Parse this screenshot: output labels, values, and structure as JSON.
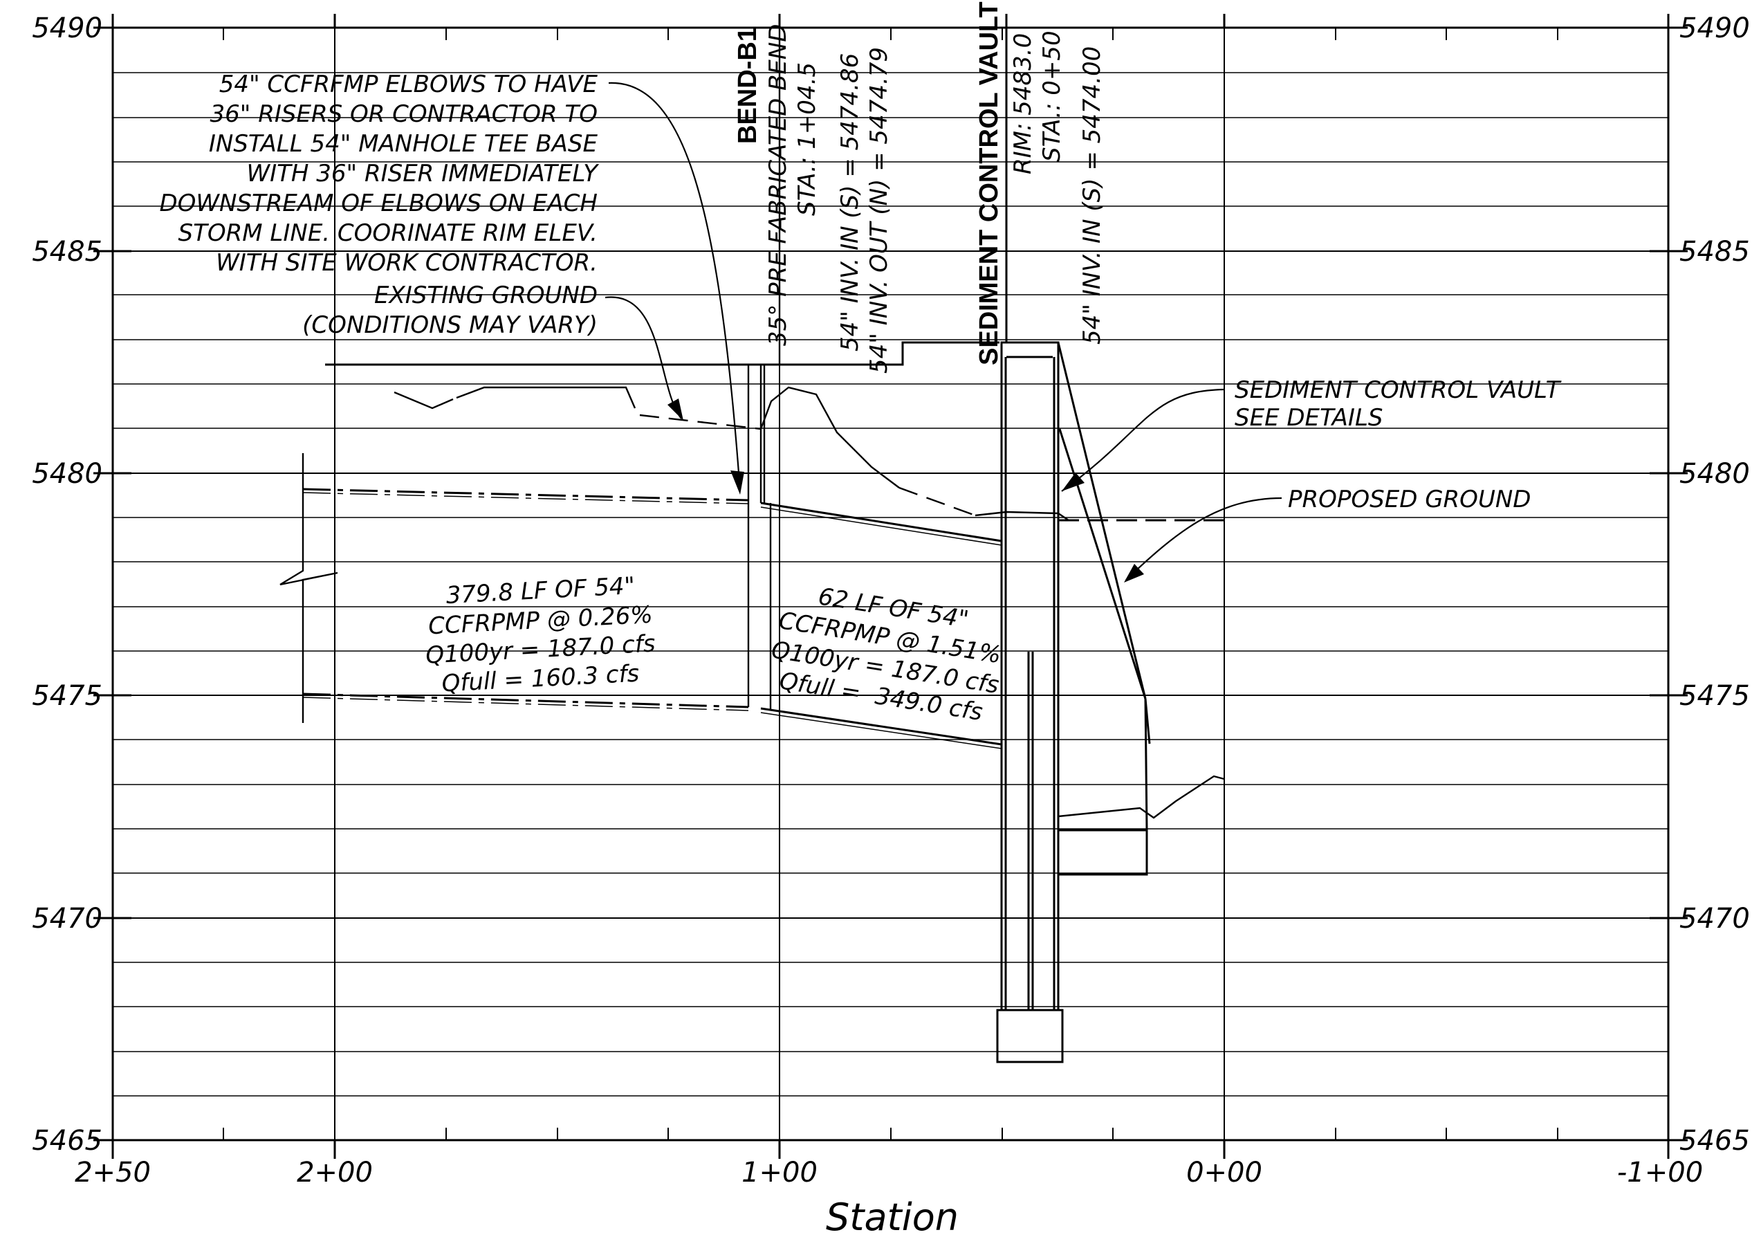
{
  "axis": {
    "y_ticks": [
      "5490",
      "5485",
      "5480",
      "5475",
      "5470",
      "5465"
    ],
    "x_ticks": [
      "2+50",
      "2+00",
      "1+00",
      "0+00",
      "-1+00"
    ],
    "x_title": "Station"
  },
  "notes": {
    "elbows": [
      "54\" CCFRFMP ELBOWS TO HAVE",
      "36\" RISERS OR CONTRACTOR TO",
      "INSTALL 54\" MANHOLE TEE BASE",
      "WITH 36\" RISER IMMEDIATELY",
      "DOWNSTREAM OF ELBOWS ON EACH",
      "STORM LINE. COORINATE RIM ELEV.",
      "WITH SITE WORK CONTRACTOR."
    ],
    "existing_ground": [
      "EXISTING GROUND",
      "(CONDITIONS MAY VARY)"
    ],
    "vault_note": [
      "SEDIMENT CONTROL VAULT",
      "SEE DETAILS"
    ],
    "proposed_ground": "PROPOSED GROUND"
  },
  "structures": {
    "bend": {
      "name": "BEND-B1",
      "lines": [
        "35° PRE FABRICATED BEND",
        "STA.: 1+04.5",
        "54\" INV. IN (S) = 5474.86",
        "54\" INV. OUT (N) = 5474.79"
      ]
    },
    "vault": {
      "name": "SEDIMENT CONTROL VAULT",
      "lines": [
        "RIM: 5483.0",
        "STA.: 0+50",
        "54\" INV. IN (S) = 5474.00"
      ]
    }
  },
  "pipes": {
    "pipe1": [
      "379.8 LF OF 54\"",
      "CCFRPMP @ 0.26%",
      "Q100yr = 187.0 cfs",
      "Qfull = 160.3 cfs"
    ],
    "pipe2": [
      "62 LF OF 54\"",
      "CCFRPMP @ 1.51%",
      "Q100yr = 187.0 cfs",
      "Qfull =  349.0 cfs"
    ]
  }
}
